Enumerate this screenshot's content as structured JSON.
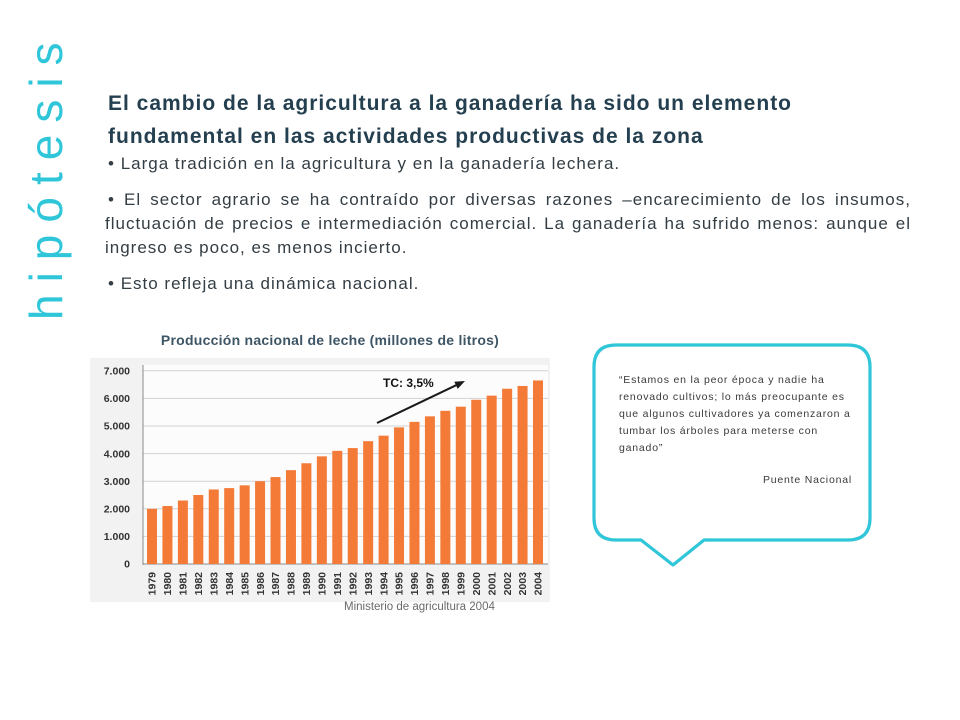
{
  "slide": {
    "vertical_title": "hipótesis",
    "title": "El cambio de la agricultura a la ganadería ha sido un elemento fundamental en las actividades productivas de la zona",
    "bullets": [
      "Larga tradición en la agricultura y en la ganadería lechera.",
      "El sector agrario se ha contraído por diversas razones –encarecimiento de los insumos, fluctuación de precios e intermediación comercial. La ganadería ha sufrido menos: aunque el ingreso es poco, es menos incierto.",
      "Esto refleja una dinámica nacional."
    ]
  },
  "chart_data": {
    "type": "bar",
    "title": "Producción nacional de leche (millones de litros)",
    "categories": [
      "1979",
      "1980",
      "1981",
      "1982",
      "1983",
      "1984",
      "1985",
      "1986",
      "1987",
      "1988",
      "1989",
      "1990",
      "1991",
      "1992",
      "1993",
      "1994",
      "1995",
      "1996",
      "1997",
      "1998",
      "1999",
      "2000",
      "2001",
      "2002",
      "2003",
      "2004"
    ],
    "values": [
      2000,
      2100,
      2300,
      2500,
      2700,
      2750,
      2850,
      3000,
      3150,
      3400,
      3650,
      3900,
      4100,
      4200,
      4450,
      4650,
      4950,
      5150,
      5350,
      5550,
      5700,
      5950,
      6100,
      6350,
      6450,
      6650
    ],
    "ylim": [
      0,
      7000
    ],
    "ytick_values": [
      0,
      1000,
      2000,
      3000,
      4000,
      5000,
      6000,
      7000
    ],
    "ytick_labels": [
      "0",
      "1.000",
      "2.000",
      "3.000",
      "4.000",
      "5.000",
      "6.000",
      "7.000"
    ],
    "grid": true,
    "annotations": [
      {
        "text": "TC: 3,5%",
        "kind": "trend-arrow"
      }
    ],
    "source": "Ministerio de agricultura 2004"
  },
  "quote": {
    "lines": [
      "“Estamos en la peor época y nadie ha",
      "renovado cultivos; lo más preocupante es",
      "que algunos cultivadores ya comenzaron a",
      "tumbar los árboles para meterse con",
      "ganado”"
    ],
    "author": "Puente Nacional"
  },
  "colors": {
    "accent": "#2ec6d8",
    "title": "#243f4f",
    "text": "#333d44",
    "bar": "#f47a38"
  }
}
